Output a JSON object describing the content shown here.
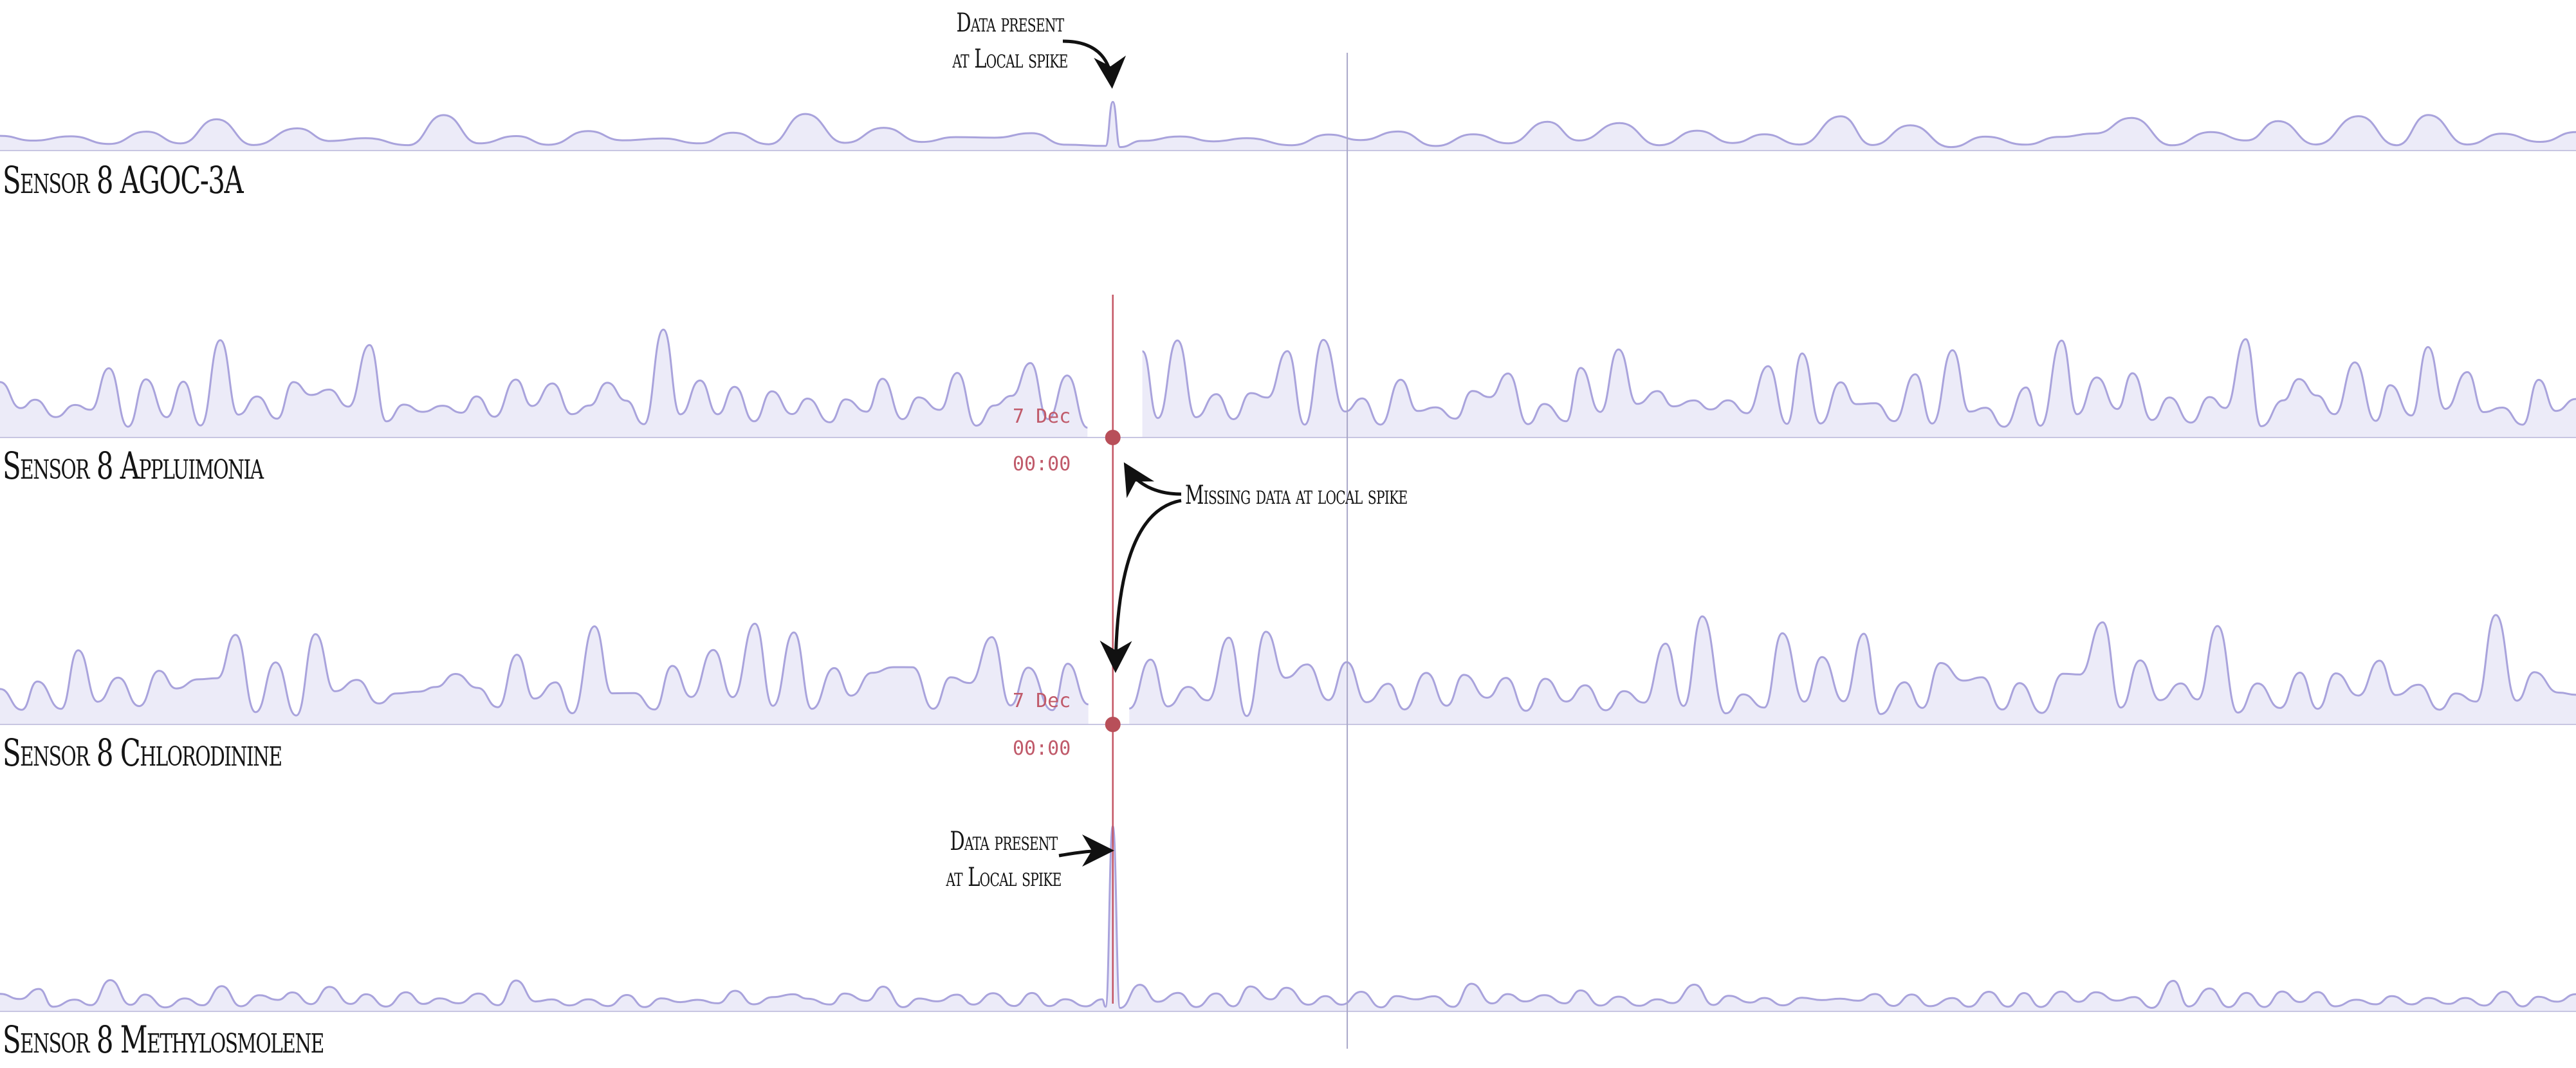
{
  "chart_data": {
    "type": "area",
    "subtype": "sparkline-multiples",
    "colors": {
      "line": "#a9a3dc",
      "fill": "#ecebf8",
      "baseline": "#c8c6e2",
      "reference_line": "#a8a6c8",
      "cursor": "#c45563",
      "cursor_dot": "#b84f59",
      "annotation_arrow": "#111111"
    },
    "grid": false,
    "legend": "none",
    "series": [
      {
        "name": "Sensor 8 AGOC-3A",
        "seed": 11,
        "peaks": 70,
        "amp_min": 0.1,
        "amp_max": 0.32,
        "spike": {
          "position": 0.432,
          "amplitude": 0.42
        }
      },
      {
        "name": "Sensor 8 Appluimonia",
        "seed": 27,
        "peaks": 140,
        "amp_min": 0.25,
        "amp_max": 0.95,
        "missing_gap": {
          "from": 0.428,
          "to": 0.438
        }
      },
      {
        "name": "Sensor 8 Chlorodinine",
        "seed": 43,
        "peaks": 130,
        "amp_min": 0.25,
        "amp_max": 0.95,
        "missing_gap": {
          "from": 0.424,
          "to": 0.434
        }
      },
      {
        "name": "Sensor 8 Methylosmolene",
        "seed": 59,
        "peaks": 140,
        "amp_min": 0.1,
        "amp_max": 0.28,
        "spike": {
          "position": 0.432,
          "amplitude": 1.6
        }
      }
    ],
    "cursor": {
      "position": 0.432,
      "date_label": "7 Dec",
      "time_label": "00:00"
    },
    "reference_position": 0.523,
    "annotations": {
      "top_spike": "Data present\nat Local spike",
      "missing": "Missing data at local spike",
      "bottom_spike": "Data present\nat Local spike"
    }
  }
}
